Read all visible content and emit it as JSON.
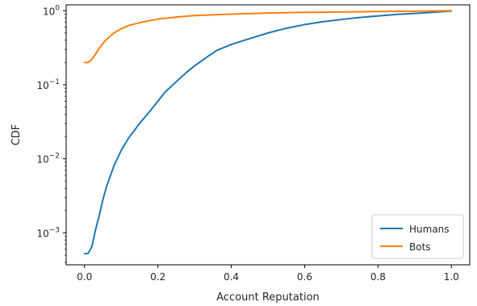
{
  "chart_data": {
    "type": "line",
    "title": "",
    "xlabel": "Account Reputation",
    "ylabel": "CDF",
    "xlim": [
      -0.05,
      1.05
    ],
    "ylim": [
      0.00037,
      1.2
    ],
    "yscale": "log",
    "grid": false,
    "legend_position": "bottom-right",
    "x_ticks": [
      {
        "value": 0.0,
        "label": "0.0"
      },
      {
        "value": 0.2,
        "label": "0.2"
      },
      {
        "value": 0.4,
        "label": "0.4"
      },
      {
        "value": 0.6,
        "label": "0.6"
      },
      {
        "value": 0.8,
        "label": "0.8"
      },
      {
        "value": 1.0,
        "label": "1.0"
      }
    ],
    "y_ticks": [
      {
        "value": 0.001,
        "base": "10",
        "exp": "−3"
      },
      {
        "value": 0.01,
        "base": "10",
        "exp": "−2"
      },
      {
        "value": 0.1,
        "base": "10",
        "exp": "−1"
      },
      {
        "value": 1,
        "base": "10",
        "exp": "0"
      }
    ],
    "series": [
      {
        "name": "Humans",
        "color": "#1f77b4",
        "x": [
          0.0,
          0.01,
          0.02,
          0.03,
          0.04,
          0.05,
          0.06,
          0.08,
          0.1,
          0.12,
          0.15,
          0.18,
          0.2,
          0.22,
          0.25,
          0.28,
          0.3,
          0.33,
          0.36,
          0.4,
          0.45,
          0.5,
          0.55,
          0.6,
          0.65,
          0.7,
          0.75,
          0.8,
          0.85,
          0.9,
          0.95,
          1.0
        ],
        "y": [
          0.00052,
          0.00053,
          0.00065,
          0.0011,
          0.0017,
          0.0028,
          0.0042,
          0.008,
          0.013,
          0.019,
          0.03,
          0.045,
          0.06,
          0.08,
          0.11,
          0.15,
          0.18,
          0.23,
          0.29,
          0.35,
          0.42,
          0.5,
          0.58,
          0.65,
          0.71,
          0.76,
          0.81,
          0.85,
          0.89,
          0.92,
          0.95,
          0.99
        ]
      },
      {
        "name": "Bots",
        "color": "#ff7f0e",
        "x": [
          0.0,
          0.01,
          0.02,
          0.03,
          0.04,
          0.05,
          0.06,
          0.08,
          0.1,
          0.12,
          0.15,
          0.2,
          0.25,
          0.3,
          0.4,
          0.5,
          0.6,
          0.7,
          0.8,
          0.9,
          1.0
        ],
        "y": [
          0.2,
          0.2,
          0.22,
          0.26,
          0.31,
          0.36,
          0.41,
          0.5,
          0.57,
          0.63,
          0.69,
          0.77,
          0.82,
          0.86,
          0.9,
          0.93,
          0.95,
          0.96,
          0.975,
          0.985,
          1.0
        ]
      }
    ]
  }
}
